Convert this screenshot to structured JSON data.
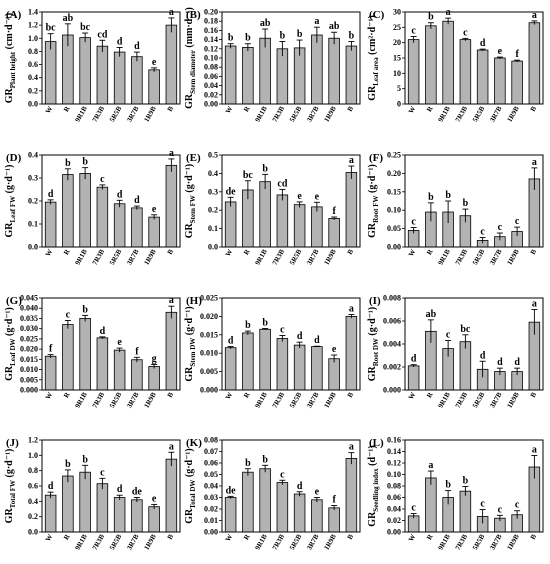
{
  "categories": [
    "W",
    "R",
    "9R1B",
    "7R3B",
    "5R5B",
    "3R7B",
    "1R9B",
    "B"
  ],
  "bar_color": "#b3b3b3",
  "chart_data": [
    {
      "type": "bar",
      "panel": "(A)",
      "ylabel": "GR",
      "ylabel_sub": "Plant height",
      "ylabel_unit": " (cm·d⁻¹)",
      "ylim": [
        0,
        1.4
      ],
      "yticks": [
        "0.0",
        "0.2",
        "0.4",
        "0.6",
        "0.8",
        "1.0",
        "1.2",
        "1.4"
      ],
      "values": [
        0.95,
        1.05,
        1.01,
        0.88,
        0.79,
        0.72,
        0.52,
        1.2
      ],
      "errors": [
        0.12,
        0.17,
        0.07,
        0.09,
        0.07,
        0.07,
        0.03,
        0.11
      ],
      "letters": [
        "bc",
        "ab",
        "bc",
        "cd",
        "d",
        "d",
        "e",
        "a"
      ]
    },
    {
      "type": "bar",
      "panel": "(B)",
      "ylabel": "GR",
      "ylabel_sub": "Stem diameter",
      "ylabel_unit": " (mm·d⁻¹)",
      "ylim": [
        0,
        0.2
      ],
      "yticks": [
        "0.00",
        "0.02",
        "0.04",
        "0.06",
        "0.08",
        "0.10",
        "0.12",
        "0.14",
        "0.16",
        "0.18",
        "0.20"
      ],
      "values": [
        0.126,
        0.123,
        0.143,
        0.12,
        0.122,
        0.15,
        0.143,
        0.126
      ],
      "errors": [
        0.005,
        0.008,
        0.02,
        0.016,
        0.017,
        0.017,
        0.013,
        0.01
      ],
      "letters": [
        "b",
        "b",
        "ab",
        "b",
        "b",
        "a",
        "ab",
        "b"
      ]
    },
    {
      "type": "bar",
      "panel": "(C)",
      "ylabel": "GR",
      "ylabel_sub": "Leaf area",
      "ylabel_unit": " (cm²·d⁻¹)",
      "ylim": [
        0,
        30
      ],
      "yticks": [
        "0",
        "5",
        "10",
        "15",
        "20",
        "25",
        "30"
      ],
      "values": [
        21.0,
        25.5,
        27.0,
        21.0,
        17.6,
        15.0,
        14.0,
        26.5
      ],
      "errors": [
        1.0,
        1.0,
        1.0,
        0.4,
        0.3,
        0.3,
        0.3,
        0.6
      ],
      "letters": [
        "c",
        "b",
        "a",
        "c",
        "d",
        "e",
        "f",
        "a"
      ]
    },
    {
      "type": "bar",
      "panel": "(D)",
      "ylabel": "GR",
      "ylabel_sub": "Leaf FW",
      "ylabel_unit": " (g·d⁻¹)",
      "ylim": [
        0,
        0.4
      ],
      "yticks": [
        "0.0",
        "0.1",
        "0.2",
        "0.3",
        "0.4"
      ],
      "values": [
        0.195,
        0.315,
        0.32,
        0.26,
        0.188,
        0.17,
        0.13,
        0.355
      ],
      "errors": [
        0.01,
        0.025,
        0.025,
        0.01,
        0.015,
        0.008,
        0.01,
        0.028
      ],
      "letters": [
        "d",
        "b",
        "b",
        "c",
        "d",
        "d",
        "e",
        "a"
      ]
    },
    {
      "type": "bar",
      "panel": "(E)",
      "ylabel": "GR",
      "ylabel_sub": "Stem FW",
      "ylabel_unit": " (g·d⁻¹)",
      "ylim": [
        0,
        0.5
      ],
      "yticks": [
        "0.0",
        "0.1",
        "0.2",
        "0.3",
        "0.4",
        "0.5"
      ],
      "values": [
        0.245,
        0.31,
        0.355,
        0.283,
        0.23,
        0.218,
        0.155,
        0.405
      ],
      "errors": [
        0.025,
        0.05,
        0.04,
        0.03,
        0.015,
        0.025,
        0.008,
        0.035
      ],
      "letters": [
        "de",
        "bc",
        "b",
        "cd",
        "e",
        "e",
        "f",
        "a"
      ]
    },
    {
      "type": "bar",
      "panel": "(F)",
      "ylabel": "GR",
      "ylabel_sub": "Root FW",
      "ylabel_unit": " (g·d⁻¹)",
      "ylim": [
        0,
        0.25
      ],
      "yticks": [
        "0.00",
        "0.05",
        "0.10",
        "0.15",
        "0.20",
        "0.25"
      ],
      "values": [
        0.045,
        0.095,
        0.095,
        0.085,
        0.018,
        0.028,
        0.042,
        0.185
      ],
      "errors": [
        0.008,
        0.025,
        0.03,
        0.018,
        0.008,
        0.01,
        0.012,
        0.03
      ],
      "letters": [
        "c",
        "b",
        "b",
        "b",
        "c",
        "c",
        "c",
        "a"
      ]
    },
    {
      "type": "bar",
      "panel": "(G)",
      "ylabel": "GR",
      "ylabel_sub": "Leaf DW",
      "ylabel_unit": " (g·d⁻¹)",
      "ylim": [
        0,
        0.045
      ],
      "yticks": [
        "0.000",
        "0.005",
        "0.010",
        "0.015",
        "0.020",
        "0.025",
        "0.030",
        "0.035",
        "0.040",
        "0.045"
      ],
      "values": [
        0.0165,
        0.032,
        0.035,
        0.0255,
        0.0195,
        0.0148,
        0.0115,
        0.038
      ],
      "errors": [
        0.0008,
        0.002,
        0.0015,
        0.0005,
        0.001,
        0.0012,
        0.001,
        0.003
      ],
      "letters": [
        "f",
        "c",
        "b",
        "d",
        "e",
        "f",
        "g",
        "a"
      ]
    },
    {
      "type": "bar",
      "panel": "(H)",
      "ylabel": "GR",
      "ylabel_sub": "Stem DW",
      "ylabel_unit": " (g·d⁻¹)",
      "ylim": [
        0,
        0.025
      ],
      "yticks": [
        "0.000",
        "0.005",
        "0.010",
        "0.015",
        "0.020",
        "0.025"
      ],
      "values": [
        0.0115,
        0.0155,
        0.0165,
        0.014,
        0.0122,
        0.0118,
        0.0085,
        0.02
      ],
      "errors": [
        0.0003,
        0.0005,
        0.0002,
        0.0008,
        0.0008,
        0.0001,
        0.001,
        0.0005
      ],
      "letters": [
        "d",
        "b",
        "b",
        "c",
        "d",
        "d",
        "e",
        "a"
      ]
    },
    {
      "type": "bar",
      "panel": "(I)",
      "ylabel": "GR",
      "ylabel_sub": "Root DW",
      "ylabel_unit": " (g·d⁻¹)",
      "ylim": [
        0,
        0.008
      ],
      "yticks": [
        "0.000",
        "0.002",
        "0.004",
        "0.006",
        "0.008"
      ],
      "values": [
        0.0021,
        0.0051,
        0.0036,
        0.0042,
        0.0018,
        0.0016,
        0.0016,
        0.0059
      ],
      "errors": [
        0.0001,
        0.001,
        0.0007,
        0.0006,
        0.0007,
        0.0003,
        0.0003,
        0.0011
      ],
      "letters": [
        "d",
        "ab",
        "c",
        "bc",
        "d",
        "d",
        "d",
        "a"
      ]
    },
    {
      "type": "bar",
      "panel": "(J)",
      "ylabel": "GR",
      "ylabel_sub": "Total FW",
      "ylabel_unit": " (g·d⁻¹)",
      "ylim": [
        0,
        1.2
      ],
      "yticks": [
        "0.0",
        "0.2",
        "0.4",
        "0.6",
        "0.8",
        "1.0",
        "1.2"
      ],
      "values": [
        0.48,
        0.73,
        0.78,
        0.63,
        0.45,
        0.42,
        0.33,
        0.95
      ],
      "errors": [
        0.04,
        0.08,
        0.09,
        0.07,
        0.03,
        0.03,
        0.03,
        0.09
      ],
      "letters": [
        "d",
        "b",
        "b",
        "c",
        "d",
        "de",
        "e",
        "a"
      ]
    },
    {
      "type": "bar",
      "panel": "(K)",
      "ylabel": "GR",
      "ylabel_sub": "Total DW",
      "ylabel_unit": " (g·d⁻¹)",
      "ylim": [
        0,
        0.08
      ],
      "yticks": [
        "0.00",
        "0.01",
        "0.02",
        "0.03",
        "0.04",
        "0.05",
        "0.06",
        "0.07",
        "0.08"
      ],
      "values": [
        0.03,
        0.052,
        0.055,
        0.043,
        0.033,
        0.028,
        0.021,
        0.064
      ],
      "errors": [
        0.001,
        0.003,
        0.003,
        0.002,
        0.002,
        0.002,
        0.002,
        0.005
      ],
      "letters": [
        "de",
        "b",
        "b",
        "c",
        "d",
        "e",
        "f",
        "a"
      ]
    },
    {
      "type": "bar",
      "panel": "(L)",
      "ylabel": "GR",
      "ylabel_sub": "Seedling index",
      "ylabel_unit": " (d⁻¹)",
      "ylim": [
        0,
        0.16
      ],
      "yticks": [
        "0.00",
        "0.02",
        "0.04",
        "0.06",
        "0.08",
        "0.10",
        "0.12",
        "0.14",
        "0.16"
      ],
      "values": [
        0.028,
        0.094,
        0.06,
        0.071,
        0.027,
        0.024,
        0.03,
        0.113
      ],
      "errors": [
        0.004,
        0.012,
        0.012,
        0.008,
        0.012,
        0.005,
        0.007,
        0.02
      ],
      "letters": [
        "c",
        "a",
        "b",
        "b",
        "c",
        "c",
        "c",
        "a"
      ]
    }
  ]
}
